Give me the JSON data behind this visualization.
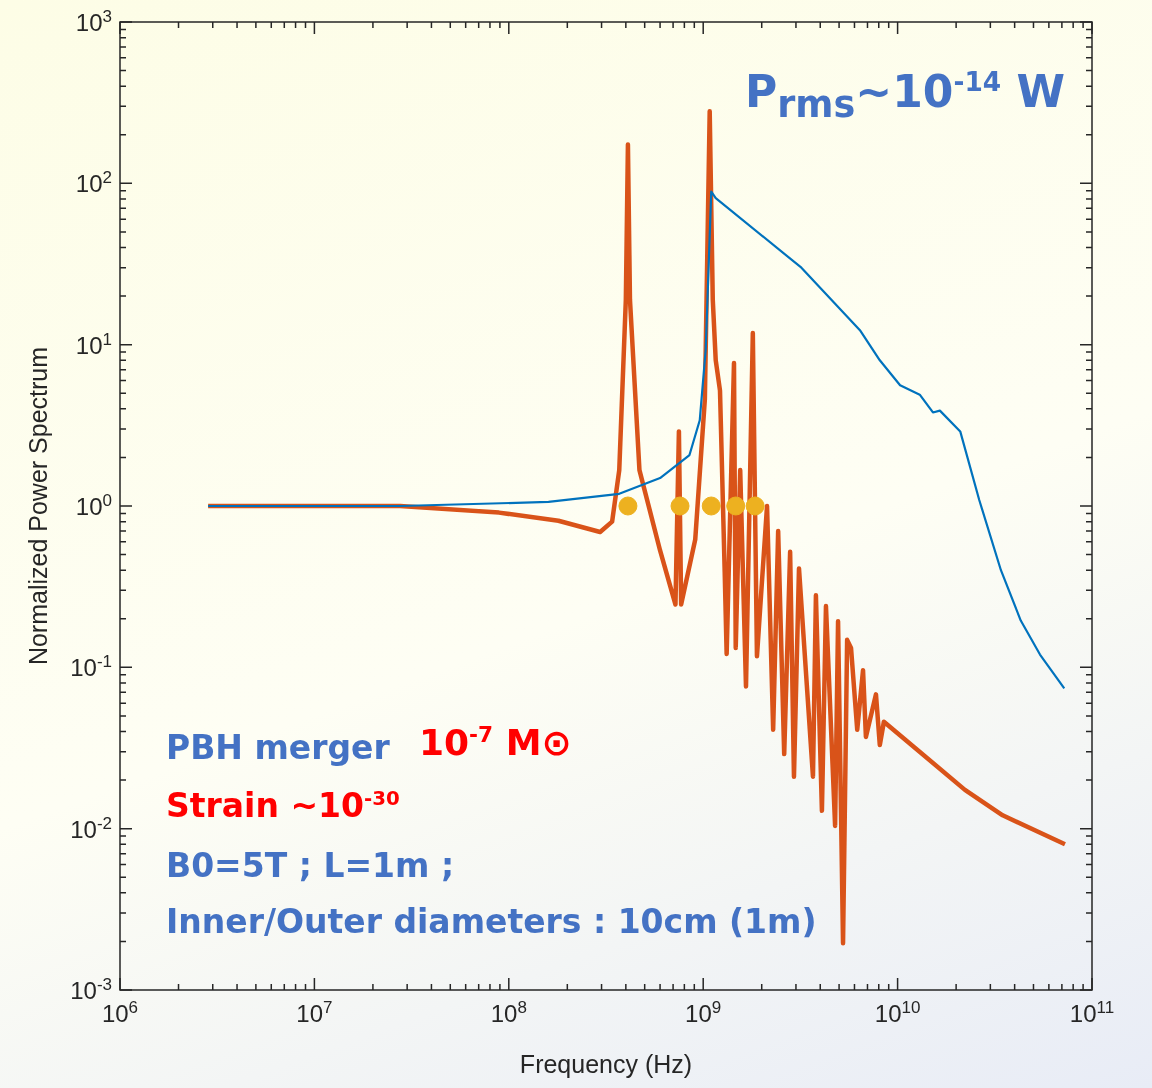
{
  "chart_data": {
    "type": "line",
    "xlabel": "Frequency (Hz)",
    "ylabel": "Normalized Power Spectrum",
    "log": "xy",
    "grid": false,
    "legend": false,
    "marker": "none",
    "line_style": "solid",
    "xlim": [
      1000000.0,
      100000000000.0
    ],
    "ylim": [
      0.001,
      1000
    ],
    "xticks": [
      {
        "value": 1000000.0,
        "label": "10$^{6}$"
      },
      {
        "value": 10000000.0,
        "label": "10$^{7}$"
      },
      {
        "value": 100000000.0,
        "label": "10$^{8}$"
      },
      {
        "value": 1000000000.0,
        "label": "10$^{9}$"
      },
      {
        "value": 10000000000.0,
        "label": "10$^{10}$"
      },
      {
        "value": 100000000000.0,
        "label": "10$^{11}$"
      }
    ],
    "yticks": [
      {
        "value": 0.001,
        "label": "10$^{-3}$"
      },
      {
        "value": 0.01,
        "label": "10$^{-2}$"
      },
      {
        "value": 0.1,
        "label": "10$^{-1}$"
      },
      {
        "value": 1,
        "label": "10$^{0}$"
      },
      {
        "value": 10,
        "label": "10$^{1}$"
      },
      {
        "value": 100,
        "label": "10$^{2}$"
      },
      {
        "value": 1000,
        "label": "10$^{3}$"
      }
    ],
    "series": [
      {
        "type": "line",
        "color": "#0072bd",
        "x": [
          2840000.0,
          27600000.0,
          160000000.0,
          370000000.0,
          600000000.0,
          850000000.0,
          960000000.0,
          1030000000.0,
          1100000000.0,
          1160000000.0,
          3200000000.0,
          6400000000.0,
          8100000000.0,
          10300000000.0,
          13000000000.0,
          15200000000.0,
          16500000000.0,
          21000000000.0,
          26300000000.0,
          34000000000.0,
          43000000000.0,
          54000000000.0,
          72000000000.0
        ],
        "values": [
          1,
          1,
          1.06,
          1.19,
          1.49,
          2.07,
          3.4,
          9.3,
          89,
          81,
          30,
          12.3,
          8.0,
          5.6,
          4.9,
          3.8,
          3.9,
          2.9,
          1.09,
          0.4,
          0.195,
          0.12,
          0.074
        ]
      },
      {
        "type": "line",
        "color": "#d95319",
        "x": [
          2840000.0,
          27600000.0,
          89000000.0,
          180000000.0,
          295000000.0,
          340000000.0,
          370000000.0,
          400000000.0,
          410000000.0,
          420000000.0,
          470000000.0,
          600000000.0,
          720000000.0,
          750000000.0,
          770000000.0,
          910000000.0,
          1020000000.0,
          1080000000.0,
          1120000000.0,
          1160000000.0,
          1220000000.0,
          1290000000.0,
          1320000000.0,
          1440000000.0,
          1470000000.0,
          1550000000.0,
          1660000000.0,
          1800000000.0,
          1890000000.0,
          2130000000.0,
          2290000000.0,
          2430000000.0,
          2610000000.0,
          2800000000.0,
          2930000000.0,
          3110000000.0,
          3670000000.0,
          3800000000.0,
          4080000000.0,
          4280000000.0,
          4770000000.0,
          4940000000.0,
          5240000000.0,
          5500000000.0,
          5760000000.0,
          6200000000.0,
          6640000000.0,
          6870000000.0,
          7740000000.0,
          8100000000.0,
          8500000000.0,
          22200000000.0,
          34700000000.0,
          72600000000.0
        ],
        "values": [
          1,
          1,
          0.91,
          0.81,
          0.69,
          0.8,
          1.67,
          19,
          174,
          19,
          1.67,
          0.53,
          0.245,
          2.9,
          0.245,
          0.62,
          4.6,
          280,
          19,
          8.0,
          5.2,
          0.39,
          0.121,
          7.7,
          0.132,
          1.67,
          0.076,
          11.8,
          0.117,
          1.0,
          0.041,
          0.7,
          0.029,
          0.52,
          0.021,
          0.41,
          0.021,
          0.28,
          0.0129,
          0.24,
          0.0104,
          0.193,
          0.00195,
          0.148,
          0.132,
          0.041,
          0.096,
          0.037,
          0.068,
          0.033,
          0.046,
          0.0174,
          0.0121,
          0.008
        ]
      },
      {
        "type": "scatter",
        "marker": "circle",
        "color": "#edb120",
        "x": [
          410000000.0,
          760000000.0,
          1100000000.0,
          1470000000.0,
          1850000000.0
        ],
        "values": [
          1,
          1,
          1,
          1,
          1
        ]
      }
    ],
    "annotations": [
      "P$_{rms}$~10$^{-14}$ W",
      "PBH merger",
      "10$^{-7}$ M⊙",
      "Strain ~10$^{-30}$",
      "B0=5T ; L=1m ;",
      "Inner/Outer diameters : 10cm (1m)"
    ]
  }
}
